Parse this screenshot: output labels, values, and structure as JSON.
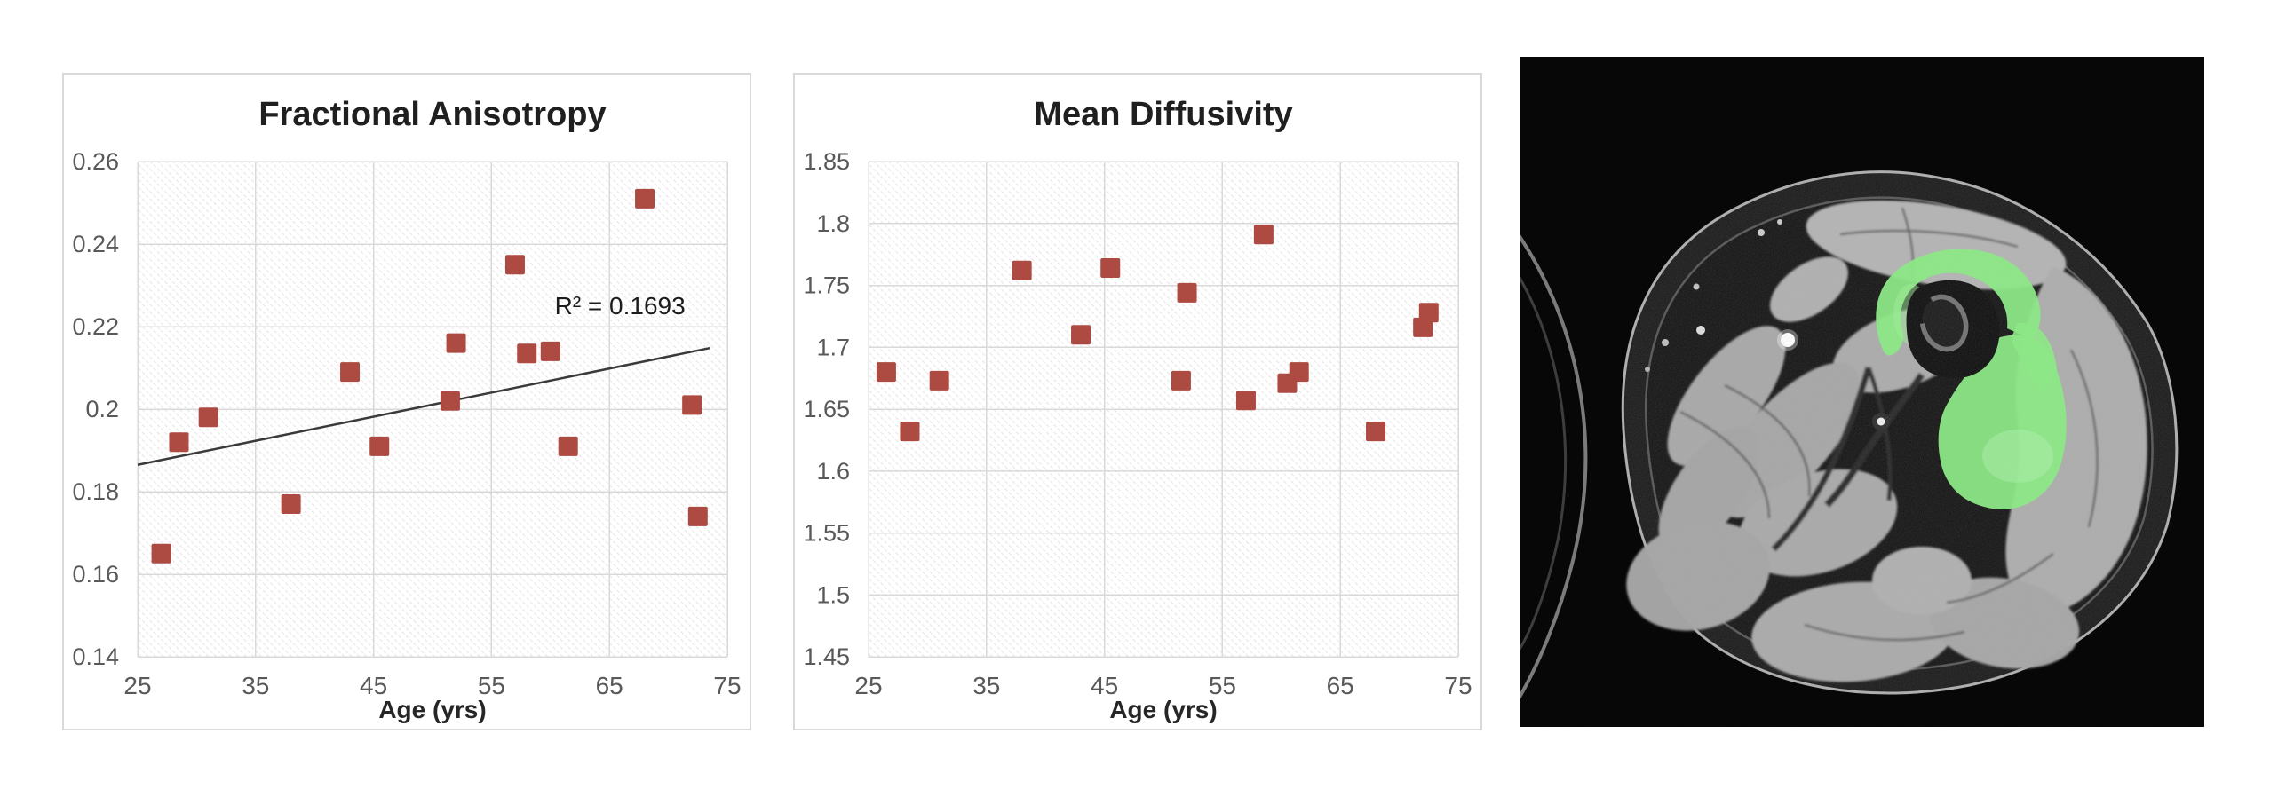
{
  "page": {
    "background": "#ffffff"
  },
  "chart_data": [
    {
      "type": "scatter",
      "title": "Fractional Anisotropy",
      "xlabel": "Age (yrs)",
      "ylabel": "",
      "xlim": [
        25,
        75
      ],
      "ylim": [
        0.14,
        0.26
      ],
      "x_tick_values": [
        25,
        35,
        45,
        55,
        65,
        75
      ],
      "x_tick_labels": [
        "25",
        "35",
        "45",
        "55",
        "65",
        "75"
      ],
      "y_tick_values": [
        0.26,
        0.24,
        0.22,
        0.2,
        0.18,
        0.16,
        0.14
      ],
      "y_tick_labels": [
        "0.26",
        "0.24",
        "0.22",
        "0.2",
        "0.18",
        "0.16",
        "0.14"
      ],
      "grid": true,
      "legend_position": "none",
      "marker": {
        "shape": "square",
        "size": 22,
        "color": "#ad4a42"
      },
      "x": [
        27,
        28.5,
        31,
        38,
        43,
        45.5,
        51.5,
        52,
        57,
        58,
        60,
        61.5,
        68,
        72,
        72.5
      ],
      "y": [
        0.165,
        0.192,
        0.198,
        0.177,
        0.209,
        0.191,
        0.202,
        0.216,
        0.235,
        0.2135,
        0.214,
        0.191,
        0.251,
        0.201,
        0.174
      ],
      "trendline": {
        "x1": 25,
        "y1": 0.1865,
        "x2": 73.5,
        "y2": 0.2148,
        "color": "#3a3a3a"
      },
      "annotation": {
        "text": "R² = 0.1693",
        "x": 65.9,
        "y": 0.2252
      }
    },
    {
      "type": "scatter",
      "title": "Mean Diffusivity",
      "xlabel": "Age (yrs)",
      "ylabel": "",
      "xlim": [
        25,
        75
      ],
      "ylim": [
        1.45,
        1.85
      ],
      "x_tick_values": [
        25,
        35,
        45,
        55,
        65,
        75
      ],
      "x_tick_labels": [
        "25",
        "35",
        "45",
        "55",
        "65",
        "75"
      ],
      "y_tick_values": [
        1.85,
        1.8,
        1.75,
        1.7,
        1.65,
        1.6,
        1.55,
        1.5,
        1.45
      ],
      "y_tick_labels": [
        "1.85",
        "1.8",
        "1.75",
        "1.7",
        "1.65",
        "1.6",
        "1.55",
        "1.5",
        "1.45"
      ],
      "grid": true,
      "legend_position": "none",
      "marker": {
        "shape": "square",
        "size": 22,
        "color": "#ad4a42"
      },
      "x": [
        26.5,
        28.5,
        31,
        38,
        43,
        45.5,
        51.5,
        52,
        57,
        58.5,
        60.5,
        61.5,
        68,
        72,
        72.5
      ],
      "y": [
        1.68,
        1.632,
        1.673,
        1.762,
        1.71,
        1.764,
        1.673,
        1.744,
        1.657,
        1.791,
        1.671,
        1.68,
        1.632,
        1.716,
        1.728
      ],
      "trendline": null,
      "annotation": null
    }
  ],
  "mri": {
    "label": "Axial MRI cross-section of thigh with highlighted muscle region around femur",
    "background_color": "#040404",
    "highlight_color": "#86ea7e"
  },
  "styles": {
    "grid_color": "#d9d9d9",
    "hatch_color": "#e6e6e6",
    "axis_text_color": "#595959",
    "panel_border": "#d9d9d9",
    "title_color": "#1f1f1f",
    "marker_color": "#ad4a42"
  }
}
